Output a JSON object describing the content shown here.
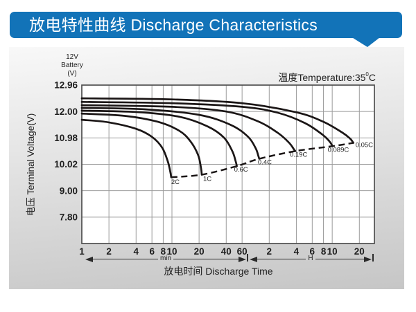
{
  "header": {
    "title": "放电特性曲线 Discharge Characteristics"
  },
  "battery_label": "12V\nBattery\n(V)",
  "temperature_note": {
    "prefix": "温度Temperature:35",
    "sup": "0",
    "unit": "C"
  },
  "chart_data": {
    "type": "line",
    "x_axis": {
      "scale": "log",
      "title": "放电时间 Discharge Time",
      "unit_ranges": [
        {
          "label": "min"
        },
        {
          "label": "H"
        }
      ],
      "ticks_min": [
        {
          "time_min": 1,
          "label": "1"
        },
        {
          "time_min": 2,
          "label": "2"
        },
        {
          "time_min": 4,
          "label": "4"
        },
        {
          "time_min": 6,
          "label": "6"
        },
        {
          "time_min": 8,
          "label": "8"
        },
        {
          "time_min": 10,
          "label": "10"
        },
        {
          "time_min": 20,
          "label": "20"
        },
        {
          "time_min": 40,
          "label": "40"
        },
        {
          "time_min": 60,
          "label": "60"
        }
      ],
      "ticks_h": [
        {
          "time_min": 120,
          "label": "2"
        },
        {
          "time_min": 240,
          "label": "4"
        },
        {
          "time_min": 360,
          "label": "6"
        },
        {
          "time_min": 480,
          "label": "8"
        },
        {
          "time_min": 600,
          "label": "10"
        },
        {
          "time_min": 1200,
          "label": "20"
        }
      ]
    },
    "y_axis": {
      "title": "电压 Terminal Voltage(V)",
      "ticks": [
        {
          "value": 12.96,
          "label": "12.96"
        },
        {
          "value": 12.0,
          "label": "12.00"
        },
        {
          "value": 10.98,
          "label": "10.98"
        },
        {
          "value": 10.02,
          "label": "10.02"
        },
        {
          "value": 9.0,
          "label": "9.00"
        },
        {
          "value": 7.8,
          "label": "7.80"
        }
      ]
    },
    "series": [
      {
        "label": "2C",
        "points": [
          [
            1,
            11.68
          ],
          [
            2,
            11.58
          ],
          [
            4,
            11.33
          ],
          [
            6,
            11.02
          ],
          [
            7.8,
            10.62
          ],
          [
            9,
            10.12
          ],
          [
            9.6,
            9.72
          ],
          [
            9.8,
            9.52
          ]
        ]
      },
      {
        "label": "1C",
        "points": [
          [
            1,
            11.92
          ],
          [
            3,
            11.83
          ],
          [
            7,
            11.6
          ],
          [
            12,
            11.26
          ],
          [
            16,
            10.86
          ],
          [
            19.5,
            10.36
          ],
          [
            21,
            9.88
          ],
          [
            21.4,
            9.62
          ]
        ]
      },
      {
        "label": "0.6C",
        "points": [
          [
            1,
            12.03
          ],
          [
            4,
            11.98
          ],
          [
            12,
            11.8
          ],
          [
            25,
            11.42
          ],
          [
            38,
            10.98
          ],
          [
            47,
            10.48
          ],
          [
            51,
            10.12
          ],
          [
            52.5,
            9.95
          ]
        ]
      },
      {
        "label": "0.4C",
        "points": [
          [
            1,
            12.13
          ],
          [
            5,
            12.08
          ],
          [
            20,
            11.87
          ],
          [
            45,
            11.48
          ],
          [
            70,
            11.02
          ],
          [
            85,
            10.6
          ],
          [
            91,
            10.32
          ],
          [
            93,
            10.22
          ]
        ]
      },
      {
        "label": "0.19C",
        "points": [
          [
            1,
            12.23
          ],
          [
            10,
            12.17
          ],
          [
            40,
            12.0
          ],
          [
            90,
            11.62
          ],
          [
            150,
            11.17
          ],
          [
            200,
            10.8
          ],
          [
            226,
            10.56
          ],
          [
            234,
            10.5
          ]
        ]
      },
      {
        "label": "0.089C",
        "points": [
          [
            1,
            12.35
          ],
          [
            10,
            12.3
          ],
          [
            60,
            12.17
          ],
          [
            150,
            11.95
          ],
          [
            300,
            11.55
          ],
          [
            470,
            11.1
          ],
          [
            560,
            10.85
          ],
          [
            605,
            10.68
          ]
        ]
      },
      {
        "label": "0.05C",
        "points": [
          [
            1,
            12.48
          ],
          [
            10,
            12.44
          ],
          [
            60,
            12.3
          ],
          [
            240,
            11.97
          ],
          [
            480,
            11.6
          ],
          [
            780,
            11.18
          ],
          [
            950,
            10.95
          ],
          [
            1030,
            10.8
          ]
        ]
      }
    ],
    "cutoff_line": {
      "style": "dashed",
      "description": "connects discharge end points of all rate curves"
    }
  }
}
